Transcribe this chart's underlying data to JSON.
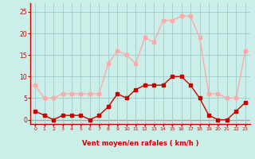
{
  "hours": [
    0,
    1,
    2,
    3,
    4,
    5,
    6,
    7,
    8,
    9,
    10,
    11,
    12,
    13,
    14,
    15,
    16,
    17,
    18,
    19,
    20,
    21,
    22,
    23
  ],
  "wind_avg": [
    2,
    1,
    0,
    1,
    1,
    1,
    0,
    1,
    3,
    6,
    5,
    7,
    8,
    8,
    8,
    10,
    10,
    8,
    5,
    1,
    0,
    0,
    2,
    4
  ],
  "wind_gust": [
    8,
    5,
    5,
    6,
    6,
    6,
    6,
    6,
    13,
    16,
    15,
    13,
    19,
    18,
    23,
    23,
    24,
    24,
    19,
    6,
    6,
    5,
    5,
    16
  ],
  "color_avg": "#cc0000",
  "color_gust": "#ffaaaa",
  "bg_color": "#cceee8",
  "grid_color": "#99cccc",
  "axis_color": "#cc0000",
  "xlabel": "Vent moyen/en rafales ( km/h )",
  "ylim": [
    -1,
    27
  ],
  "yticks": [
    0,
    5,
    10,
    15,
    20,
    25
  ],
  "marker_size": 2.5,
  "linewidth": 1.0
}
